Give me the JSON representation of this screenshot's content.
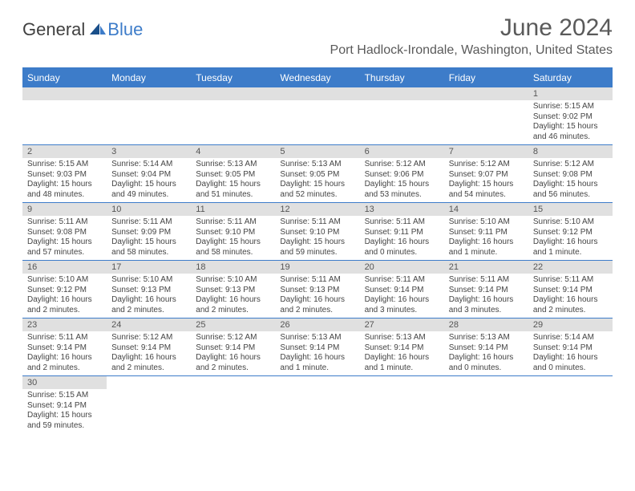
{
  "logo": {
    "main": "General",
    "sub": "Blue"
  },
  "title": "June 2024",
  "location": "Port Hadlock-Irondale, Washington, United States",
  "colors": {
    "header_bg": "#3d7cc9",
    "daynum_bg": "#e0e0e0",
    "border": "#3d7cc9",
    "text": "#444444",
    "title_text": "#5a5a5a"
  },
  "weekdays": [
    "Sunday",
    "Monday",
    "Tuesday",
    "Wednesday",
    "Thursday",
    "Friday",
    "Saturday"
  ],
  "weeks": [
    [
      {
        "blank": true
      },
      {
        "blank": true
      },
      {
        "blank": true
      },
      {
        "blank": true
      },
      {
        "blank": true
      },
      {
        "blank": true
      },
      {
        "n": "1",
        "sr": "Sunrise: 5:15 AM",
        "ss": "Sunset: 9:02 PM",
        "dl": "Daylight: 15 hours and 46 minutes."
      }
    ],
    [
      {
        "n": "2",
        "sr": "Sunrise: 5:15 AM",
        "ss": "Sunset: 9:03 PM",
        "dl": "Daylight: 15 hours and 48 minutes."
      },
      {
        "n": "3",
        "sr": "Sunrise: 5:14 AM",
        "ss": "Sunset: 9:04 PM",
        "dl": "Daylight: 15 hours and 49 minutes."
      },
      {
        "n": "4",
        "sr": "Sunrise: 5:13 AM",
        "ss": "Sunset: 9:05 PM",
        "dl": "Daylight: 15 hours and 51 minutes."
      },
      {
        "n": "5",
        "sr": "Sunrise: 5:13 AM",
        "ss": "Sunset: 9:05 PM",
        "dl": "Daylight: 15 hours and 52 minutes."
      },
      {
        "n": "6",
        "sr": "Sunrise: 5:12 AM",
        "ss": "Sunset: 9:06 PM",
        "dl": "Daylight: 15 hours and 53 minutes."
      },
      {
        "n": "7",
        "sr": "Sunrise: 5:12 AM",
        "ss": "Sunset: 9:07 PM",
        "dl": "Daylight: 15 hours and 54 minutes."
      },
      {
        "n": "8",
        "sr": "Sunrise: 5:12 AM",
        "ss": "Sunset: 9:08 PM",
        "dl": "Daylight: 15 hours and 56 minutes."
      }
    ],
    [
      {
        "n": "9",
        "sr": "Sunrise: 5:11 AM",
        "ss": "Sunset: 9:08 PM",
        "dl": "Daylight: 15 hours and 57 minutes."
      },
      {
        "n": "10",
        "sr": "Sunrise: 5:11 AM",
        "ss": "Sunset: 9:09 PM",
        "dl": "Daylight: 15 hours and 58 minutes."
      },
      {
        "n": "11",
        "sr": "Sunrise: 5:11 AM",
        "ss": "Sunset: 9:10 PM",
        "dl": "Daylight: 15 hours and 58 minutes."
      },
      {
        "n": "12",
        "sr": "Sunrise: 5:11 AM",
        "ss": "Sunset: 9:10 PM",
        "dl": "Daylight: 15 hours and 59 minutes."
      },
      {
        "n": "13",
        "sr": "Sunrise: 5:11 AM",
        "ss": "Sunset: 9:11 PM",
        "dl": "Daylight: 16 hours and 0 minutes."
      },
      {
        "n": "14",
        "sr": "Sunrise: 5:10 AM",
        "ss": "Sunset: 9:11 PM",
        "dl": "Daylight: 16 hours and 1 minute."
      },
      {
        "n": "15",
        "sr": "Sunrise: 5:10 AM",
        "ss": "Sunset: 9:12 PM",
        "dl": "Daylight: 16 hours and 1 minute."
      }
    ],
    [
      {
        "n": "16",
        "sr": "Sunrise: 5:10 AM",
        "ss": "Sunset: 9:12 PM",
        "dl": "Daylight: 16 hours and 2 minutes."
      },
      {
        "n": "17",
        "sr": "Sunrise: 5:10 AM",
        "ss": "Sunset: 9:13 PM",
        "dl": "Daylight: 16 hours and 2 minutes."
      },
      {
        "n": "18",
        "sr": "Sunrise: 5:10 AM",
        "ss": "Sunset: 9:13 PM",
        "dl": "Daylight: 16 hours and 2 minutes."
      },
      {
        "n": "19",
        "sr": "Sunrise: 5:11 AM",
        "ss": "Sunset: 9:13 PM",
        "dl": "Daylight: 16 hours and 2 minutes."
      },
      {
        "n": "20",
        "sr": "Sunrise: 5:11 AM",
        "ss": "Sunset: 9:14 PM",
        "dl": "Daylight: 16 hours and 3 minutes."
      },
      {
        "n": "21",
        "sr": "Sunrise: 5:11 AM",
        "ss": "Sunset: 9:14 PM",
        "dl": "Daylight: 16 hours and 3 minutes."
      },
      {
        "n": "22",
        "sr": "Sunrise: 5:11 AM",
        "ss": "Sunset: 9:14 PM",
        "dl": "Daylight: 16 hours and 2 minutes."
      }
    ],
    [
      {
        "n": "23",
        "sr": "Sunrise: 5:11 AM",
        "ss": "Sunset: 9:14 PM",
        "dl": "Daylight: 16 hours and 2 minutes."
      },
      {
        "n": "24",
        "sr": "Sunrise: 5:12 AM",
        "ss": "Sunset: 9:14 PM",
        "dl": "Daylight: 16 hours and 2 minutes."
      },
      {
        "n": "25",
        "sr": "Sunrise: 5:12 AM",
        "ss": "Sunset: 9:14 PM",
        "dl": "Daylight: 16 hours and 2 minutes."
      },
      {
        "n": "26",
        "sr": "Sunrise: 5:13 AM",
        "ss": "Sunset: 9:14 PM",
        "dl": "Daylight: 16 hours and 1 minute."
      },
      {
        "n": "27",
        "sr": "Sunrise: 5:13 AM",
        "ss": "Sunset: 9:14 PM",
        "dl": "Daylight: 16 hours and 1 minute."
      },
      {
        "n": "28",
        "sr": "Sunrise: 5:13 AM",
        "ss": "Sunset: 9:14 PM",
        "dl": "Daylight: 16 hours and 0 minutes."
      },
      {
        "n": "29",
        "sr": "Sunrise: 5:14 AM",
        "ss": "Sunset: 9:14 PM",
        "dl": "Daylight: 16 hours and 0 minutes."
      }
    ],
    [
      {
        "n": "30",
        "sr": "Sunrise: 5:15 AM",
        "ss": "Sunset: 9:14 PM",
        "dl": "Daylight: 15 hours and 59 minutes."
      },
      {
        "blank": true
      },
      {
        "blank": true
      },
      {
        "blank": true
      },
      {
        "blank": true
      },
      {
        "blank": true
      },
      {
        "blank": true
      }
    ]
  ]
}
